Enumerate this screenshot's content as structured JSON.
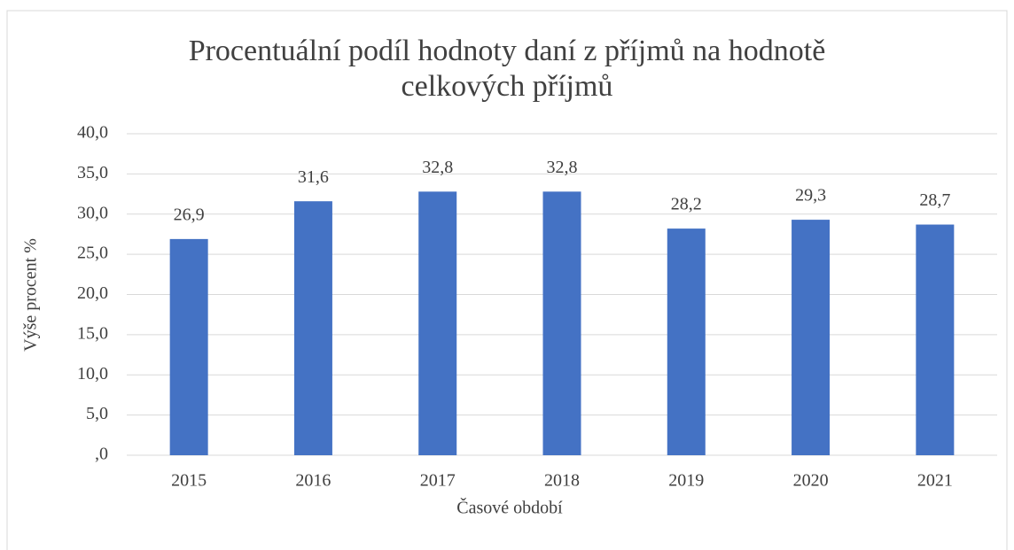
{
  "chart_data": {
    "type": "bar",
    "title": "Procentuální podíl hodnoty daní z příjmů na hodnotě celkových příjmů",
    "x_label": "Časové období",
    "y_label": "Výše procent %",
    "categories": [
      "2015",
      "2016",
      "2017",
      "2018",
      "2019",
      "2020",
      "2021"
    ],
    "values": [
      26.9,
      31.6,
      32.8,
      32.8,
      28.2,
      29.3,
      28.7
    ],
    "value_labels": [
      "26,9",
      "31,6",
      "32,8",
      "32,8",
      "28,2",
      "29,3",
      "28,7"
    ],
    "color": "#4472c4",
    "ylim": [
      0,
      40
    ],
    "yticks": [
      {
        "value": 0,
        "label": ",0"
      },
      {
        "value": 5,
        "label": "5,0"
      },
      {
        "value": 10,
        "label": "10,0"
      },
      {
        "value": 15,
        "label": "15,0"
      },
      {
        "value": 20,
        "label": "20,0"
      },
      {
        "value": 25,
        "label": "25,0"
      },
      {
        "value": 30,
        "label": "30,0"
      },
      {
        "value": 35,
        "label": "35,0"
      },
      {
        "value": 40,
        "label": "40,0"
      }
    ],
    "grid": true
  }
}
